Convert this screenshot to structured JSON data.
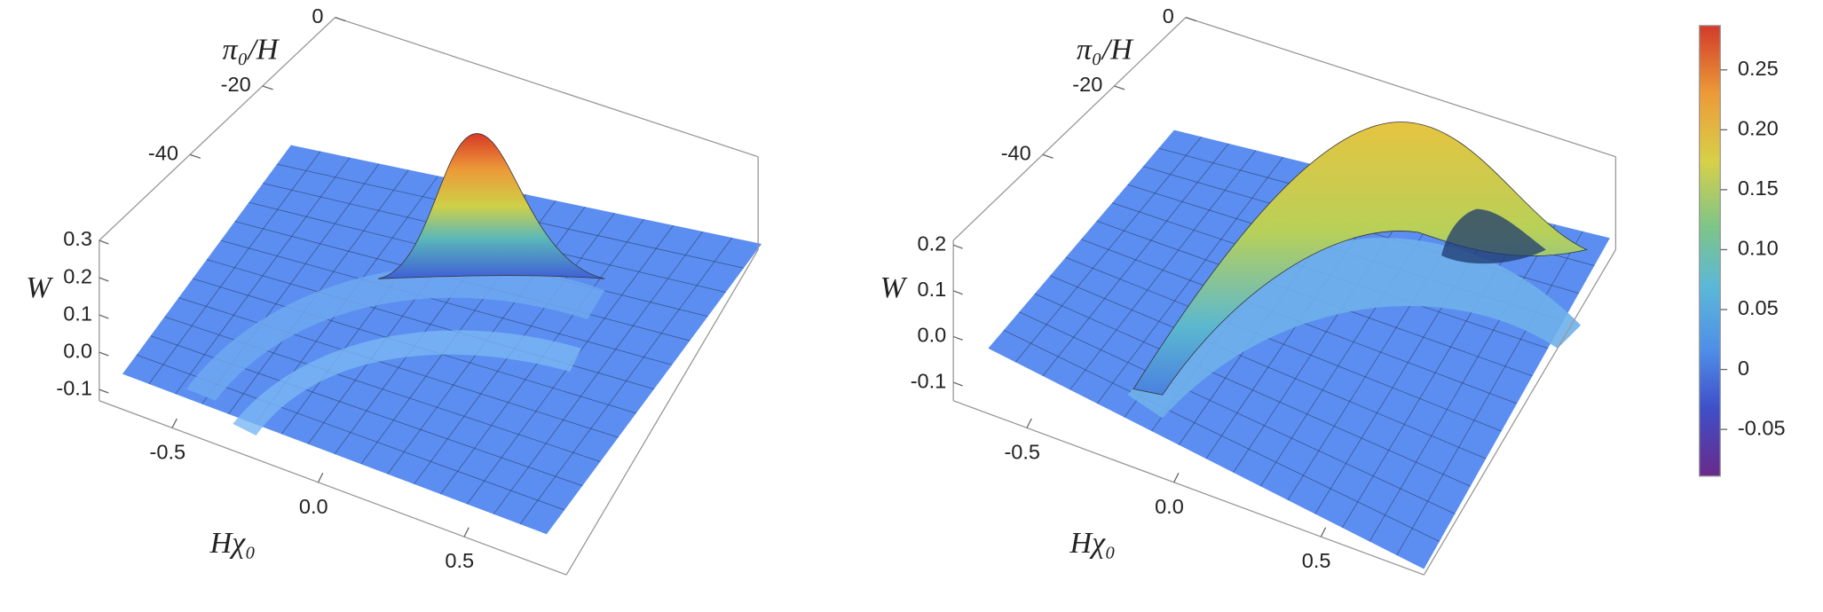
{
  "chart_data": [
    {
      "type": "surface3d",
      "xlabel": "Hχ₀",
      "ylabel": "π₀/H",
      "zlabel": "W",
      "xlim": [
        -0.75,
        0.85
      ],
      "xticks": [
        -0.5,
        {
          "value": 0,
          "label": "0.0"
        },
        0.5
      ],
      "ylim": [
        -65,
        0
      ],
      "yticks": [
        0,
        -20,
        -40
      ],
      "zlim": [
        -0.13,
        0.3
      ],
      "zticks": [
        0.3,
        0.2,
        0.1,
        {
          "value": 0,
          "label": "0.0"
        },
        -0.1
      ]
    },
    {
      "type": "surface3d",
      "xlabel": "Hχ₀",
      "ylabel": "π₀/H",
      "zlabel": "W",
      "xlim": [
        -0.75,
        0.85
      ],
      "xticks": [
        -0.5,
        {
          "value": 0,
          "label": "0.0"
        },
        0.5
      ],
      "ylim": [
        -65,
        0
      ],
      "yticks": [
        0,
        -20,
        -40
      ],
      "zlim": [
        -0.14,
        0.21
      ],
      "zticks": [
        0.2,
        0.1,
        {
          "value": 0,
          "label": "0.0"
        },
        -0.1
      ]
    },
    {
      "type": "colorbar",
      "ylim": [
        -0.089,
        0.287
      ],
      "yticks": [
        0.25,
        {
          "value": 0.2,
          "label": "0.20"
        },
        0.15,
        {
          "value": 0.1,
          "label": "0.10"
        },
        0.05,
        0,
        -0.05
      ]
    }
  ]
}
